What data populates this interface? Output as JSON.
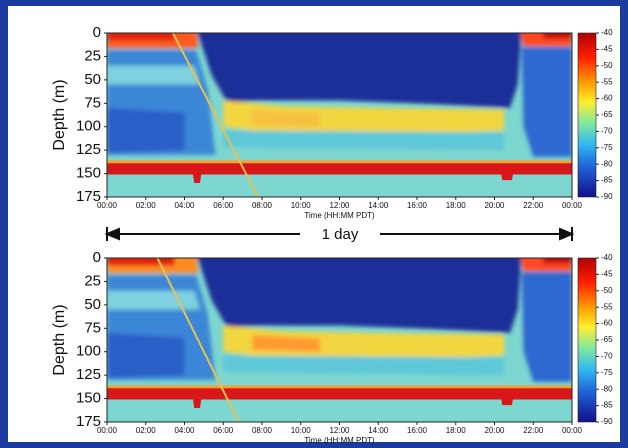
{
  "chart_data": [
    {
      "type": "heatmap",
      "xlabel": "Time (HH:MM PDT)",
      "ylabel": "Depth (m)",
      "xlim": [
        0,
        24
      ],
      "xticks": [
        {
          "value": 0,
          "label": "00:00"
        },
        {
          "value": 2,
          "label": "02:00"
        },
        {
          "value": 4,
          "label": "04:00"
        },
        {
          "value": 6,
          "label": "06:00"
        },
        {
          "value": 8,
          "label": "08:00"
        },
        {
          "value": 10,
          "label": "10:00"
        },
        {
          "value": 12,
          "label": "12:00"
        },
        {
          "value": 14,
          "label": "14:00"
        },
        {
          "value": 16,
          "label": "16:00"
        },
        {
          "value": 18,
          "label": "18:00"
        },
        {
          "value": 20,
          "label": "20:00"
        },
        {
          "value": 22,
          "label": "22:00"
        },
        {
          "value": 24,
          "label": "00:00"
        }
      ],
      "ylim": [
        0,
        175
      ],
      "yticks": [
        0,
        25,
        50,
        75,
        100,
        125,
        150,
        175
      ],
      "y_inverted": true,
      "colorbar_lim": [
        -40,
        -90
      ],
      "colorbar_ticks": [
        -40,
        -45,
        -50,
        -55,
        -60,
        -65,
        -70,
        -75,
        -80,
        -85,
        -90
      ]
    },
    {
      "type": "heatmap",
      "xlabel": "Time (HH:MM PDT)",
      "ylabel": "Depth (m)",
      "xlim": [
        0,
        24
      ],
      "xticks": [
        {
          "value": 0,
          "label": "00:00"
        },
        {
          "value": 2,
          "label": "02:00"
        },
        {
          "value": 4,
          "label": "04:00"
        },
        {
          "value": 6,
          "label": "06:00"
        },
        {
          "value": 8,
          "label": "08:00"
        },
        {
          "value": 10,
          "label": "10:00"
        },
        {
          "value": 12,
          "label": "12:00"
        },
        {
          "value": 14,
          "label": "14:00"
        },
        {
          "value": 16,
          "label": "16:00"
        },
        {
          "value": 18,
          "label": "18:00"
        },
        {
          "value": 20,
          "label": "20:00"
        },
        {
          "value": 22,
          "label": "22:00"
        },
        {
          "value": 24,
          "label": "00:00"
        }
      ],
      "ylim": [
        0,
        175
      ],
      "yticks": [
        0,
        25,
        50,
        75,
        100,
        125,
        150,
        175
      ],
      "y_inverted": true,
      "colorbar_lim": [
        -40,
        -90
      ],
      "colorbar_ticks": [
        -40,
        -45,
        -50,
        -55,
        -60,
        -65,
        -70,
        -75,
        -80,
        -85,
        -90
      ]
    }
  ],
  "scale_label": "1 day"
}
